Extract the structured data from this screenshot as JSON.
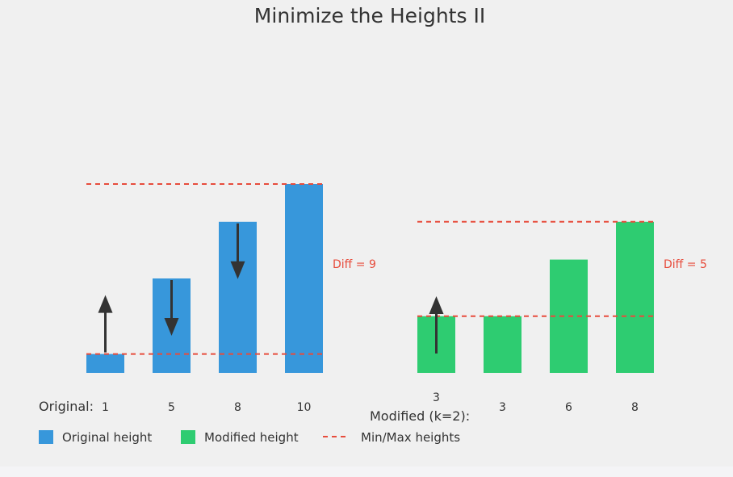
{
  "title": "Minimize the Heights II",
  "colors": {
    "original": "#3797db",
    "modified": "#2ecc71",
    "minmax": "#e74c3c",
    "arrow": "#333333",
    "text": "#333333",
    "background": "#f0f0f0"
  },
  "chart_data": [
    {
      "type": "bar",
      "row_label": "Original:",
      "values": [
        1,
        5,
        8,
        10
      ],
      "min_line": 1,
      "max_line": 10,
      "diff_label": "Diff = 9",
      "arrows": [
        {
          "bar": 0,
          "direction": "up"
        },
        {
          "bar": 1,
          "direction": "down"
        },
        {
          "bar": 2,
          "direction": "down"
        }
      ]
    },
    {
      "type": "bar",
      "row_label": "Modified (k=2):",
      "values": [
        3,
        3,
        6,
        8
      ],
      "min_line": 3,
      "max_line": 8,
      "diff_label": "Diff = 5",
      "arrows": [
        {
          "bar": 0,
          "direction": "up"
        }
      ]
    }
  ],
  "legend": [
    {
      "label": "Original height",
      "icon": "blue-square",
      "color": "#3797db"
    },
    {
      "label": "Modified height",
      "icon": "green-square",
      "color": "#2ecc71"
    },
    {
      "label": "Min/Max heights",
      "icon": "red-dashed-line",
      "color": "#e74c3c"
    }
  ]
}
